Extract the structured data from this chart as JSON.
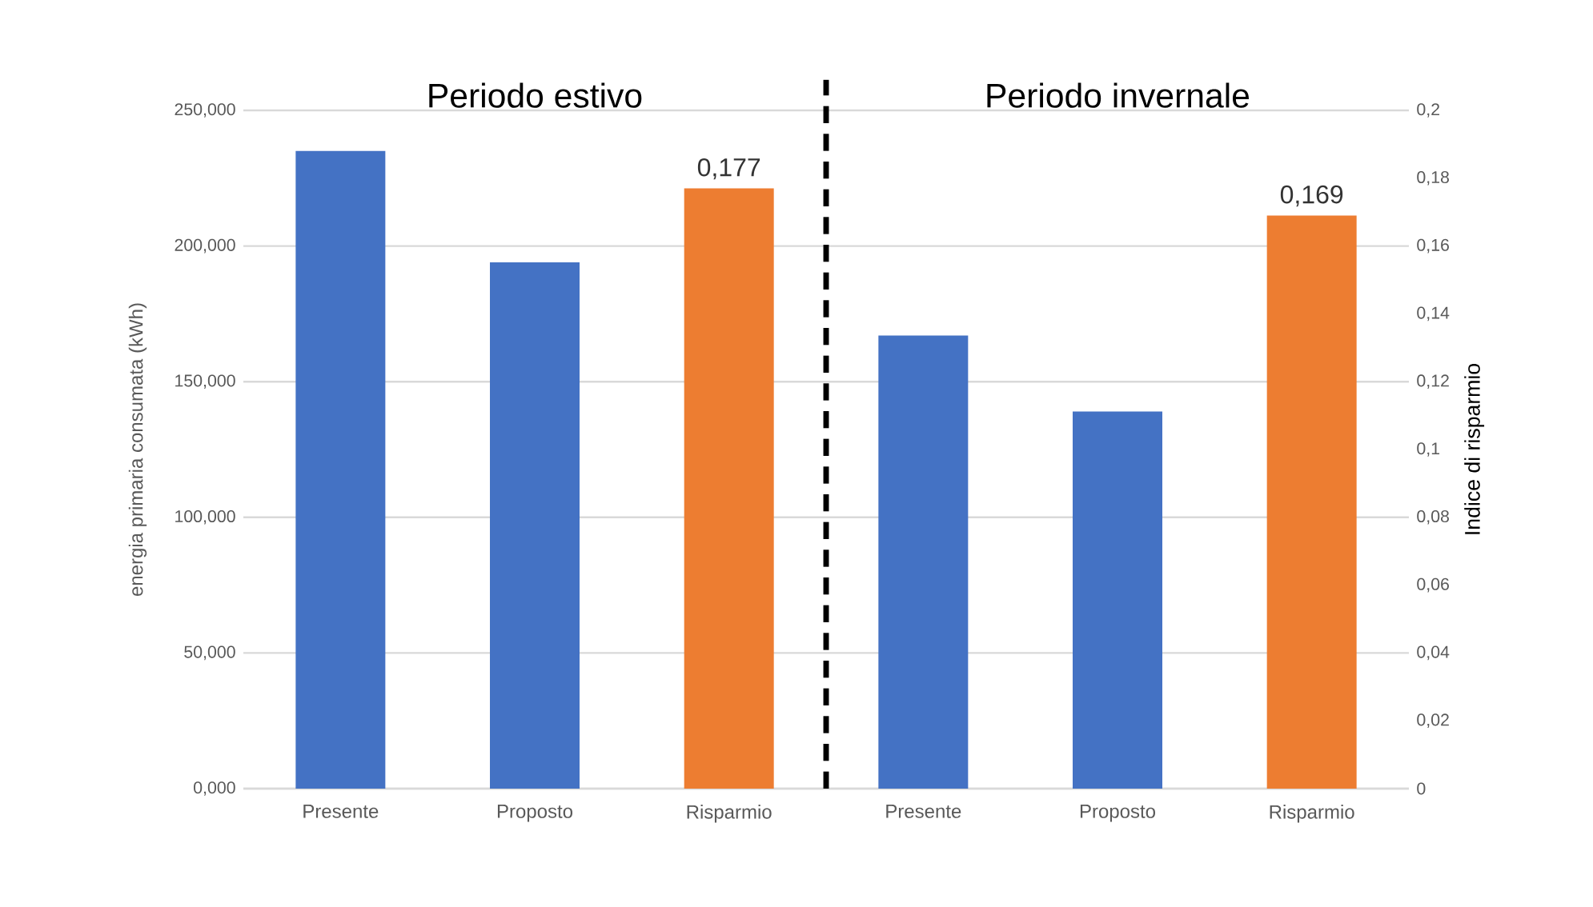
{
  "chart_data": {
    "type": "bar",
    "categories": [
      "Presente",
      "Proposto",
      "Risparmio",
      "Presente",
      "Proposto",
      "Risparmio"
    ],
    "series": [
      {
        "color": "#4472c4",
        "values": [
          235,
          194,
          null,
          167,
          139,
          null
        ]
      },
      {
        "color": "#ed7d31",
        "axis": "y2",
        "values": [
          null,
          null,
          0.177,
          null,
          null,
          0.169
        ],
        "value_labels": [
          null,
          null,
          "0,177",
          null,
          null,
          "0,169"
        ]
      }
    ],
    "ylabel": "energia primaria consumata (kWh)",
    "y2label": "Indice di risparmio",
    "ylim": [
      0,
      250
    ],
    "yticks": [
      {
        "value": 0,
        "label": "0,000"
      },
      {
        "value": 50,
        "label": "50,000"
      },
      {
        "value": 100,
        "label": "100,000"
      },
      {
        "value": 150,
        "label": "150,000"
      },
      {
        "value": 200,
        "label": "200,000"
      },
      {
        "value": 250,
        "label": "250,000"
      }
    ],
    "y2lim": [
      0,
      0.2
    ],
    "y2ticks": [
      0,
      {
        "value": 0.02,
        "label": "0,02"
      },
      {
        "value": 0.04,
        "label": "0,04"
      },
      {
        "value": 0.06,
        "label": "0,06"
      },
      {
        "value": 0.08,
        "label": "0,08"
      },
      {
        "value": 0.1,
        "label": "0,1"
      },
      {
        "value": 0.12,
        "label": "0,12"
      },
      {
        "value": 0.14,
        "label": "0,14"
      },
      {
        "value": 0.16,
        "label": "0,16"
      },
      {
        "value": 0.18,
        "label": "0,18"
      },
      {
        "value": 0.2,
        "label": "0,2"
      }
    ],
    "grid": "y",
    "annotations": [
      "Periodo estivo",
      "Periodo invernale"
    ]
  }
}
